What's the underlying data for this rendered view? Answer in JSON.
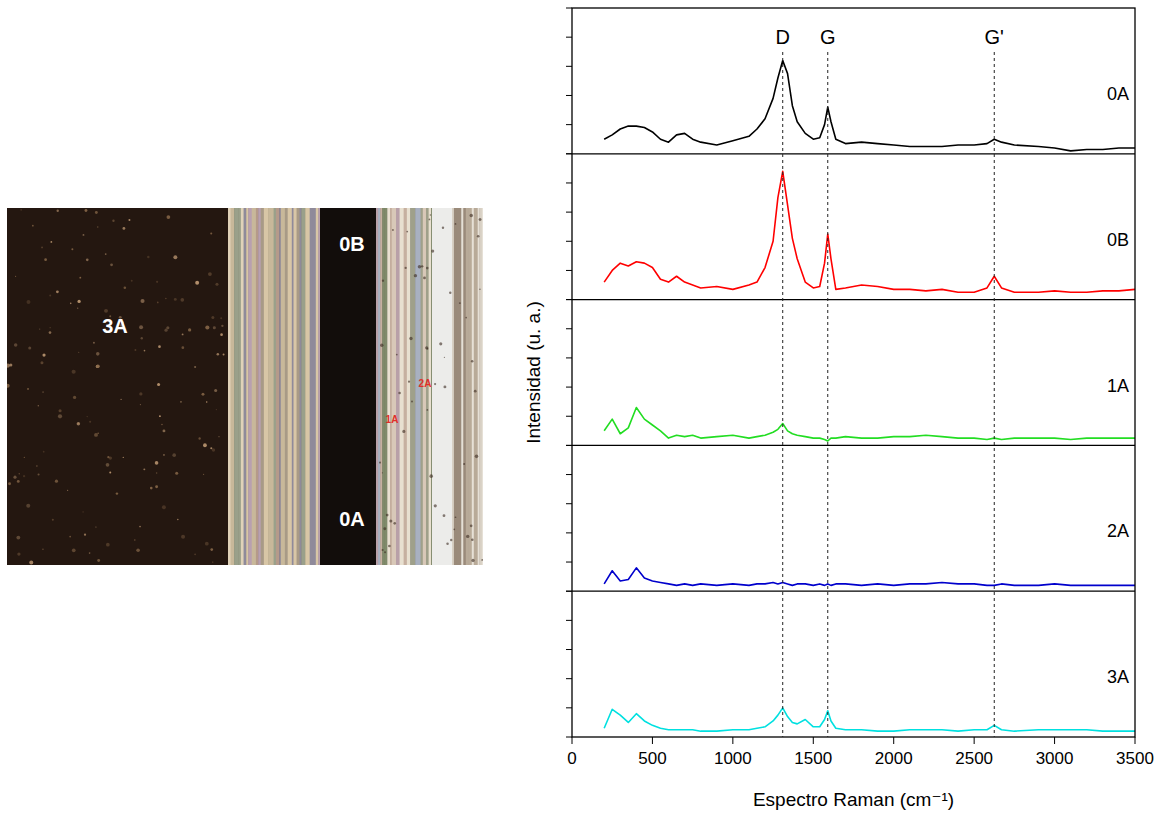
{
  "chart_data": {
    "type": "line",
    "x_label": "Espectro Raman (cm⁻¹)",
    "y_label": "Intensidad (u. a.)",
    "xlim": [
      0,
      3500
    ],
    "xticks": [
      0,
      500,
      1000,
      1500,
      2000,
      2500,
      3000,
      3500
    ],
    "ylim": [
      0,
      1
    ],
    "yticks": [
      0,
      0.2,
      0.4,
      0.6,
      0.8,
      1
    ],
    "tick_labels": "x",
    "grid": false,
    "annotations": [
      {
        "label": "D",
        "x": 1310
      },
      {
        "label": "G",
        "x": 1590
      },
      {
        "label": "G'",
        "x": 2625
      }
    ],
    "x": [
      200,
      250,
      300,
      350,
      400,
      450,
      500,
      550,
      600,
      650,
      700,
      750,
      800,
      900,
      1000,
      1100,
      1150,
      1200,
      1250,
      1280,
      1310,
      1340,
      1370,
      1400,
      1450,
      1500,
      1540,
      1570,
      1590,
      1610,
      1640,
      1700,
      1800,
      1900,
      2000,
      2100,
      2200,
      2300,
      2400,
      2500,
      2580,
      2625,
      2670,
      2750,
      2900,
      3000,
      3100,
      3200,
      3300,
      3400,
      3500
    ],
    "series": [
      {
        "name": "0A",
        "color": "#000000",
        "values": [
          0.1,
          0.13,
          0.17,
          0.19,
          0.19,
          0.18,
          0.15,
          0.1,
          0.08,
          0.13,
          0.14,
          0.1,
          0.08,
          0.06,
          0.09,
          0.12,
          0.17,
          0.24,
          0.38,
          0.52,
          0.64,
          0.55,
          0.33,
          0.22,
          0.14,
          0.1,
          0.11,
          0.2,
          0.32,
          0.22,
          0.1,
          0.07,
          0.08,
          0.07,
          0.06,
          0.05,
          0.05,
          0.05,
          0.06,
          0.06,
          0.07,
          0.1,
          0.08,
          0.06,
          0.05,
          0.04,
          0.02,
          0.03,
          0.03,
          0.04,
          0.04
        ]
      },
      {
        "name": "0B",
        "color": "#ff0000",
        "values": [
          0.12,
          0.2,
          0.25,
          0.23,
          0.26,
          0.25,
          0.22,
          0.14,
          0.12,
          0.16,
          0.12,
          0.1,
          0.08,
          0.09,
          0.07,
          0.1,
          0.12,
          0.22,
          0.4,
          0.7,
          0.88,
          0.65,
          0.42,
          0.28,
          0.12,
          0.08,
          0.09,
          0.25,
          0.45,
          0.28,
          0.07,
          0.08,
          0.1,
          0.09,
          0.07,
          0.07,
          0.06,
          0.07,
          0.05,
          0.05,
          0.08,
          0.16,
          0.08,
          0.05,
          0.05,
          0.06,
          0.05,
          0.05,
          0.06,
          0.06,
          0.07
        ]
      },
      {
        "name": "1A",
        "color": "#22dd22",
        "values": [
          0.1,
          0.18,
          0.08,
          0.12,
          0.26,
          0.18,
          0.14,
          0.1,
          0.05,
          0.07,
          0.06,
          0.07,
          0.05,
          0.06,
          0.07,
          0.05,
          0.06,
          0.07,
          0.09,
          0.11,
          0.15,
          0.1,
          0.08,
          0.07,
          0.06,
          0.05,
          0.05,
          0.04,
          0.03,
          0.05,
          0.05,
          0.06,
          0.05,
          0.05,
          0.06,
          0.06,
          0.07,
          0.06,
          0.05,
          0.05,
          0.04,
          0.05,
          0.04,
          0.05,
          0.05,
          0.05,
          0.04,
          0.05,
          0.05,
          0.05,
          0.05
        ]
      },
      {
        "name": "2A",
        "color": "#0000cc",
        "values": [
          0.05,
          0.14,
          0.07,
          0.08,
          0.16,
          0.09,
          0.07,
          0.06,
          0.05,
          0.04,
          0.05,
          0.04,
          0.05,
          0.04,
          0.05,
          0.04,
          0.05,
          0.05,
          0.06,
          0.05,
          0.06,
          0.05,
          0.04,
          0.05,
          0.05,
          0.04,
          0.05,
          0.04,
          0.05,
          0.04,
          0.05,
          0.05,
          0.04,
          0.05,
          0.04,
          0.05,
          0.05,
          0.06,
          0.05,
          0.05,
          0.04,
          0.04,
          0.05,
          0.04,
          0.04,
          0.05,
          0.04,
          0.04,
          0.04,
          0.04,
          0.04
        ]
      },
      {
        "name": "3A",
        "color": "#00e0e0",
        "values": [
          0.06,
          0.19,
          0.15,
          0.1,
          0.16,
          0.11,
          0.08,
          0.06,
          0.05,
          0.05,
          0.05,
          0.05,
          0.04,
          0.04,
          0.05,
          0.05,
          0.06,
          0.07,
          0.11,
          0.15,
          0.2,
          0.14,
          0.1,
          0.09,
          0.12,
          0.07,
          0.07,
          0.12,
          0.18,
          0.11,
          0.06,
          0.05,
          0.05,
          0.04,
          0.04,
          0.05,
          0.05,
          0.05,
          0.04,
          0.05,
          0.05,
          0.08,
          0.05,
          0.04,
          0.05,
          0.05,
          0.05,
          0.05,
          0.04,
          0.04,
          0.04
        ]
      }
    ]
  },
  "photo": {
    "labels": [
      {
        "text": "3A",
        "color": "#ffffff"
      },
      {
        "text": "0B",
        "color": "#ffffff"
      },
      {
        "text": "0A",
        "color": "#ffffff"
      },
      {
        "text": "1A",
        "color": "#e0302a"
      },
      {
        "text": "2A",
        "color": "#e0302a"
      }
    ]
  }
}
